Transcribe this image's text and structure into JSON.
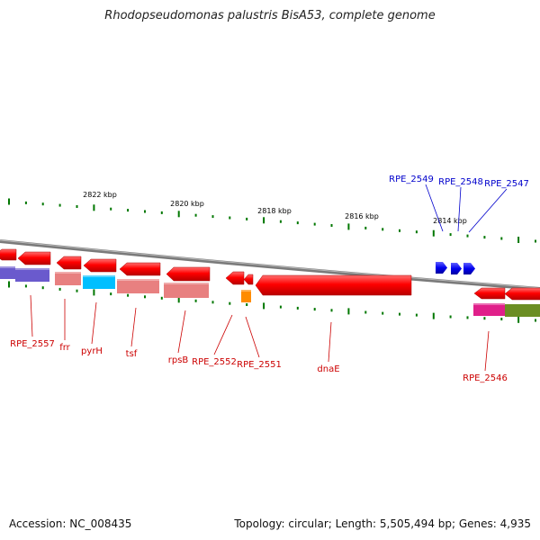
{
  "title": "Rhodopseudomonas palustris BisA53, complete genome",
  "footer": {
    "accession": "Accession: NC_008435",
    "topology": "Topology: circular; Length: 5,505,494 bp; Genes: 4,935"
  },
  "scale": [
    {
      "label": "2822 kbp",
      "kbp": 2822
    },
    {
      "label": "2820 kbp",
      "kbp": 2820
    },
    {
      "label": "2818 kbp",
      "kbp": 2818
    },
    {
      "label": "2816 kbp",
      "kbp": 2816
    },
    {
      "label": "2814 kbp",
      "kbp": 2814
    }
  ],
  "genes_forward": [
    {
      "label": "RPE_2549",
      "color": "#0000dd"
    },
    {
      "label": "RPE_2548",
      "color": "#0000dd"
    },
    {
      "label": "RPE_2547",
      "color": "#0000dd"
    }
  ],
  "genes_reverse": [
    {
      "label": "RPE_2557",
      "color": "#dd0000",
      "category_color": "#6a5acd"
    },
    {
      "label": "frr",
      "color": "#dd0000",
      "category_color": "#e88080"
    },
    {
      "label": "pyrH",
      "color": "#dd0000",
      "category_color": "#00bfff"
    },
    {
      "label": "tsf",
      "color": "#dd0000",
      "category_color": "#e88080"
    },
    {
      "label": "rpsB",
      "color": "#dd0000",
      "category_color": "#e88080"
    },
    {
      "label": "RPE_2552",
      "color": "#dd0000",
      "category_color": "#ff8c00"
    },
    {
      "label": "RPE_2551",
      "color": "#dd0000",
      "category_color": null
    },
    {
      "label": "dnaE",
      "color": "#dd0000",
      "category_color": "#e0208a"
    },
    {
      "label": "RPE_2546",
      "color": "#dd0000",
      "category_color": "#00ee88"
    }
  ],
  "colors": {
    "backbone": "#888888",
    "tick": "#007700",
    "forward_gene": "#0000dd",
    "reverse_gene": "#dd0000",
    "label_reverse": "#cc0000",
    "label_forward": "#0000cc"
  }
}
